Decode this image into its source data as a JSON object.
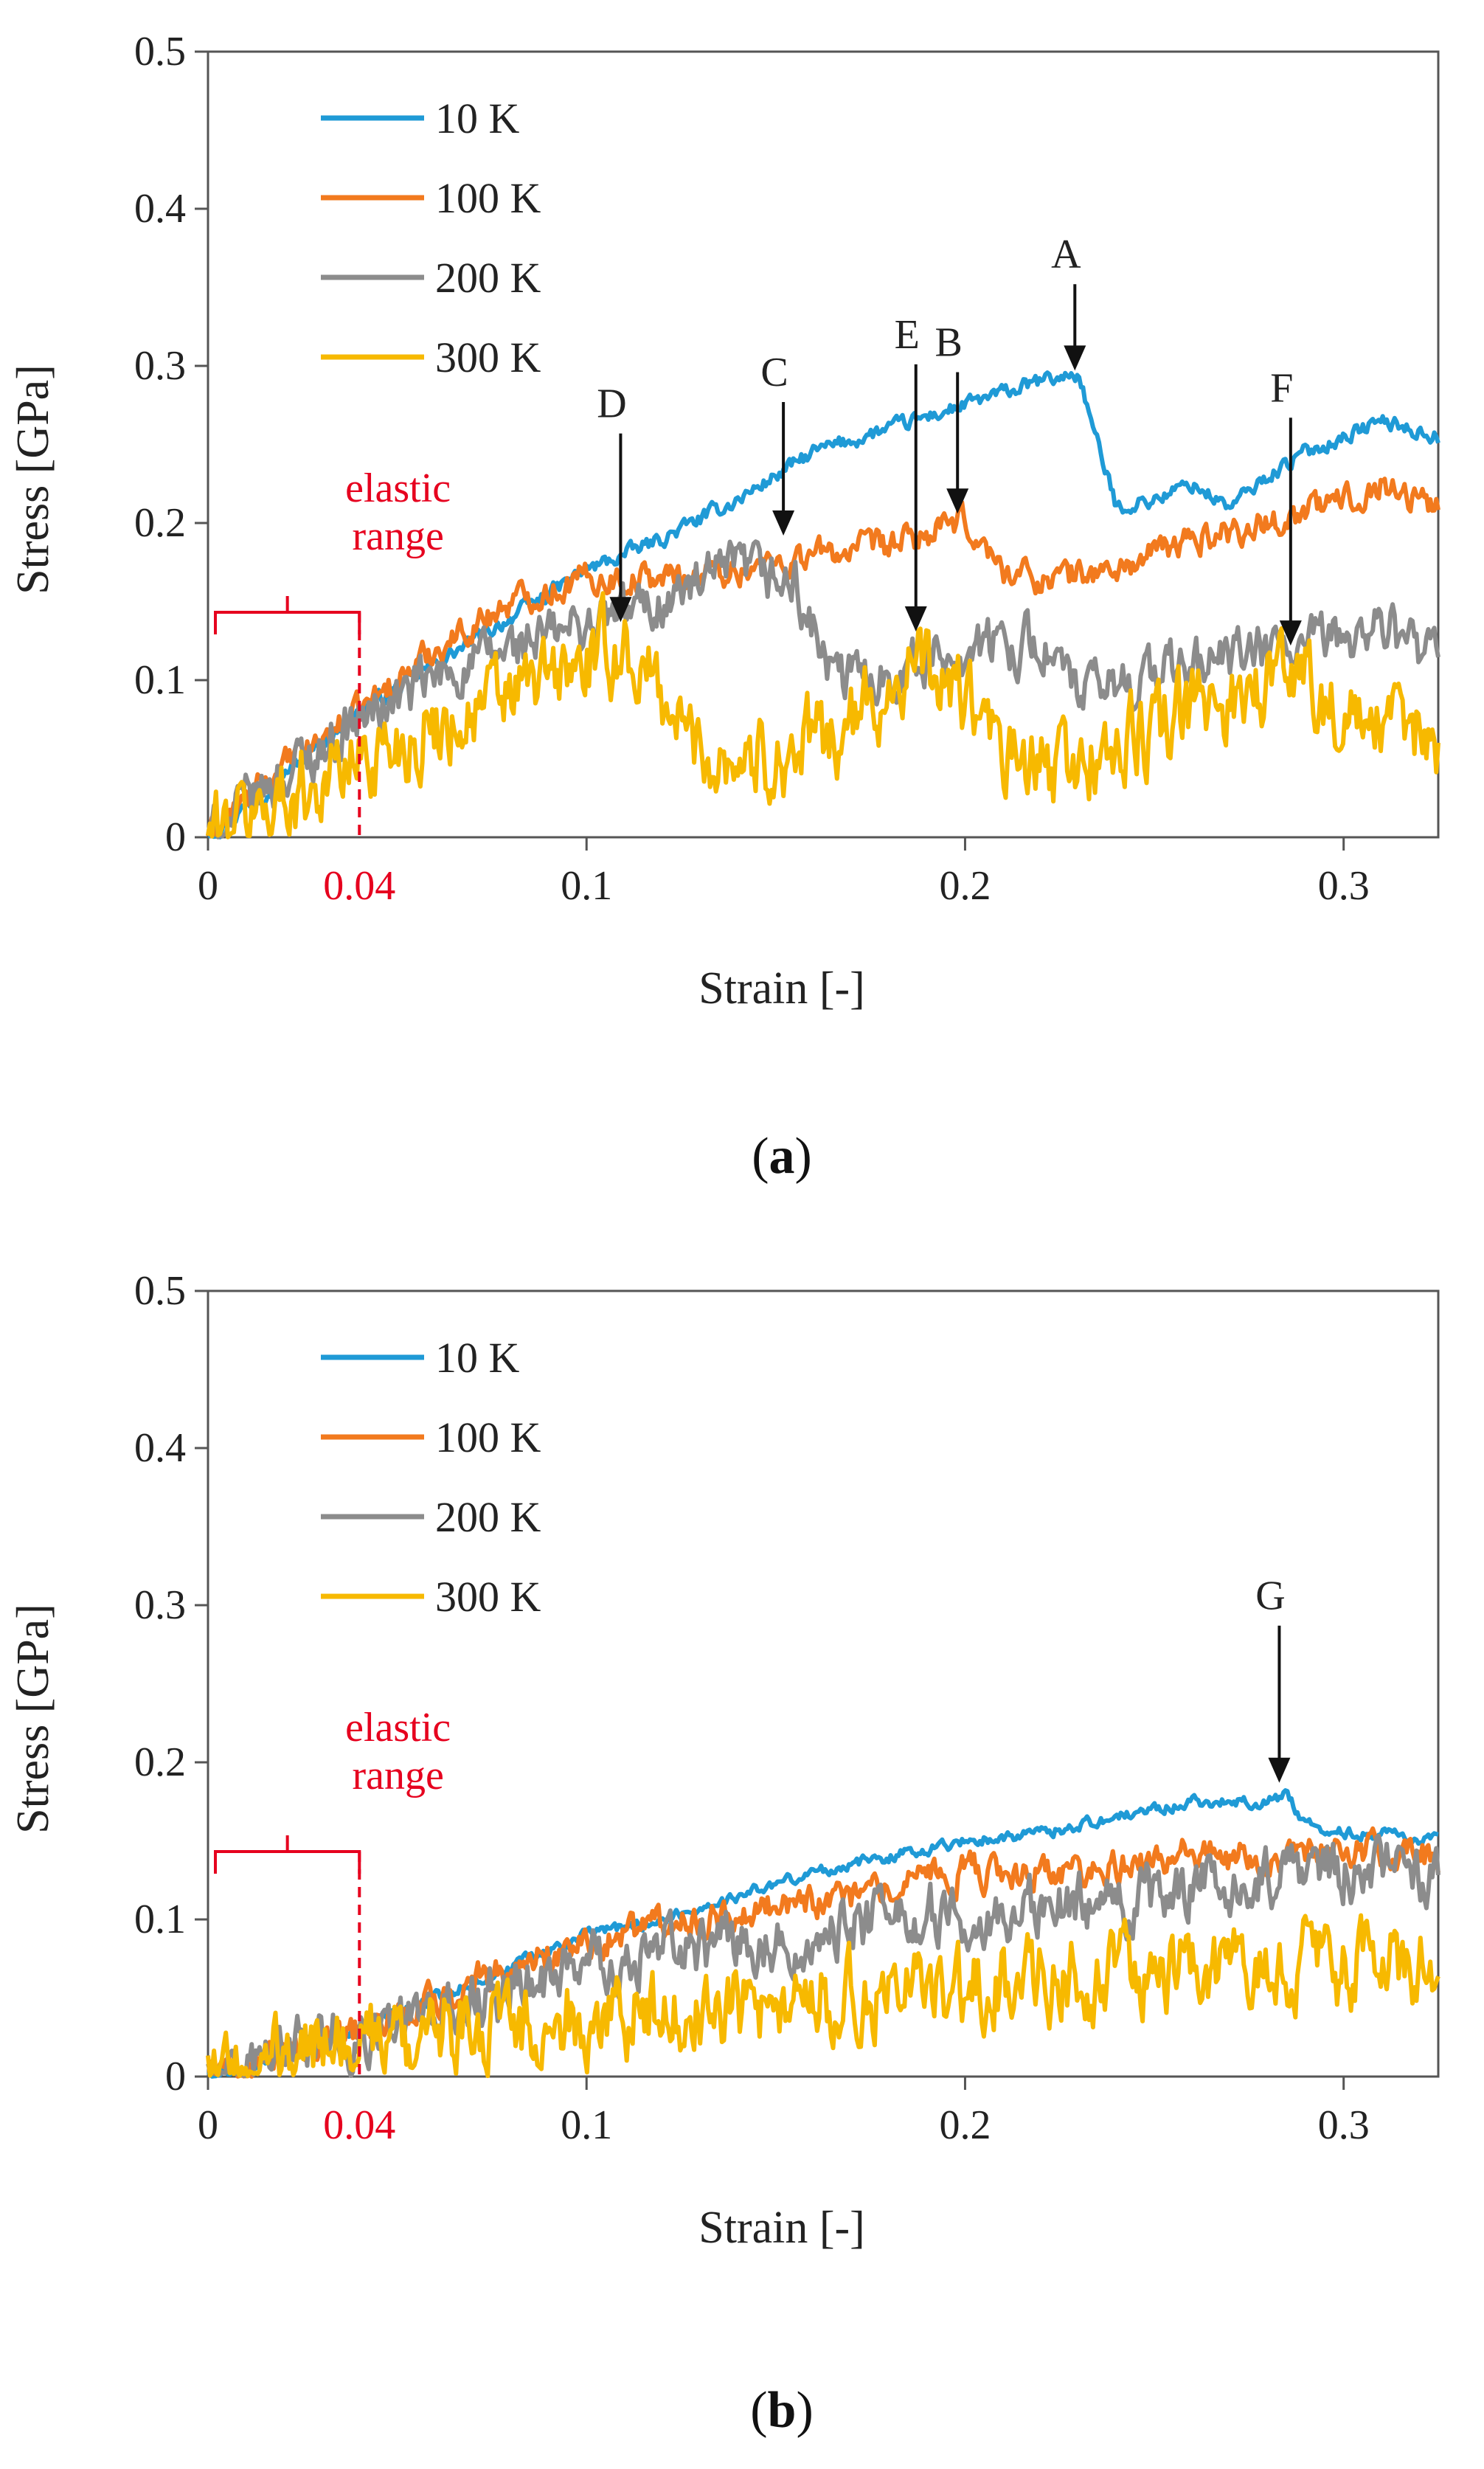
{
  "chart_data": [
    {
      "panel": "a",
      "type": "line",
      "caption_letter": "a",
      "xlabel": "Strain [-]",
      "ylabel": "Stress [GPa]",
      "xlim": [
        0,
        0.325
      ],
      "ylim": [
        0,
        0.5
      ],
      "xticks": [
        0,
        0.1,
        0.2,
        0.3
      ],
      "xtick_labels": [
        "0",
        "0.1",
        "0.2",
        "0.3"
      ],
      "yticks": [
        0,
        0.1,
        0.2,
        0.3,
        0.4,
        0.5
      ],
      "ytick_labels": [
        "0",
        "0.1",
        "0.2",
        "0.3",
        "0.4",
        "0.5"
      ],
      "legend_position": "top-left",
      "series": [
        {
          "name": "10 K",
          "color": "#1f9ad6",
          "noise": 0.004,
          "x": [
            0,
            0.02,
            0.04,
            0.06,
            0.08,
            0.1,
            0.12,
            0.14,
            0.16,
            0.18,
            0.2,
            0.22,
            0.23,
            0.235,
            0.24,
            0.25,
            0.26,
            0.27,
            0.28,
            0.29,
            0.3,
            0.31,
            0.325
          ],
          "y": [
            0,
            0.04,
            0.08,
            0.11,
            0.14,
            0.17,
            0.19,
            0.215,
            0.245,
            0.26,
            0.275,
            0.29,
            0.295,
            0.25,
            0.21,
            0.215,
            0.225,
            0.21,
            0.23,
            0.245,
            0.255,
            0.265,
            0.255
          ]
        },
        {
          "name": "100 K",
          "color": "#f27a1e",
          "noise": 0.008,
          "x": [
            0,
            0.02,
            0.04,
            0.06,
            0.08,
            0.1,
            0.12,
            0.14,
            0.16,
            0.18,
            0.2,
            0.21,
            0.22,
            0.24,
            0.26,
            0.28,
            0.3,
            0.31,
            0.325
          ],
          "y": [
            0,
            0.045,
            0.08,
            0.12,
            0.15,
            0.165,
            0.165,
            0.17,
            0.18,
            0.185,
            0.2,
            0.17,
            0.165,
            0.17,
            0.19,
            0.2,
            0.215,
            0.225,
            0.21
          ]
        },
        {
          "name": "200 K",
          "color": "#8c8c8c",
          "noise": 0.014,
          "x": [
            0,
            0.02,
            0.04,
            0.06,
            0.08,
            0.1,
            0.12,
            0.14,
            0.155,
            0.165,
            0.18,
            0.2,
            0.22,
            0.23,
            0.25,
            0.27,
            0.29,
            0.31,
            0.325
          ],
          "y": [
            0,
            0.04,
            0.075,
            0.1,
            0.12,
            0.135,
            0.15,
            0.17,
            0.16,
            0.1,
            0.105,
            0.12,
            0.125,
            0.09,
            0.105,
            0.115,
            0.12,
            0.135,
            0.11
          ]
        },
        {
          "name": "300 K",
          "color": "#f7b900",
          "noise": 0.022,
          "x": [
            0,
            0.02,
            0.04,
            0.06,
            0.08,
            0.1,
            0.11,
            0.12,
            0.13,
            0.15,
            0.17,
            0.185,
            0.2,
            0.21,
            0.22,
            0.24,
            0.26,
            0.28,
            0.29,
            0.3,
            0.325
          ],
          "y": [
            0,
            0.025,
            0.05,
            0.07,
            0.09,
            0.11,
            0.12,
            0.09,
            0.055,
            0.05,
            0.07,
            0.11,
            0.09,
            0.05,
            0.04,
            0.055,
            0.08,
            0.1,
            0.11,
            0.07,
            0.065
          ]
        }
      ],
      "elastic": {
        "label_line1": "elastic",
        "label_line2": "range",
        "strain": 0.04,
        "strain_label": "0.04"
      },
      "annotations": [
        {
          "label": "A",
          "x": 0.229,
          "y": 0.297,
          "length": 0.055
        },
        {
          "label": "B",
          "x": 0.198,
          "y": 0.206,
          "length": 0.09
        },
        {
          "label": "C",
          "x": 0.152,
          "y": 0.192,
          "length": 0.085
        },
        {
          "label": "D",
          "x": 0.109,
          "y": 0.137,
          "length": 0.12
        },
        {
          "label": "E",
          "x": 0.187,
          "y": 0.131,
          "length": 0.17
        },
        {
          "label": "F",
          "x": 0.286,
          "y": 0.122,
          "length": 0.145
        }
      ]
    },
    {
      "panel": "b",
      "type": "line",
      "caption_letter": "b",
      "xlabel": "Strain [-]",
      "ylabel": "Stress [GPa]",
      "xlim": [
        0,
        0.325
      ],
      "ylim": [
        0,
        0.5
      ],
      "xticks": [
        0,
        0.1,
        0.2,
        0.3
      ],
      "xtick_labels": [
        "0",
        "0.1",
        "0.2",
        "0.3"
      ],
      "yticks": [
        0,
        0.1,
        0.2,
        0.3,
        0.4,
        0.5
      ],
      "ytick_labels": [
        "0",
        "0.1",
        "0.2",
        "0.3",
        "0.4",
        "0.5"
      ],
      "legend_position": "top-left",
      "series": [
        {
          "name": "10 K",
          "color": "#1f9ad6",
          "noise": 0.003,
          "x": [
            0,
            0.02,
            0.04,
            0.06,
            0.08,
            0.1,
            0.12,
            0.14,
            0.16,
            0.18,
            0.2,
            0.22,
            0.24,
            0.26,
            0.27,
            0.28,
            0.285,
            0.29,
            0.3,
            0.31,
            0.325
          ],
          "y": [
            0,
            0.015,
            0.03,
            0.05,
            0.07,
            0.09,
            0.1,
            0.115,
            0.13,
            0.14,
            0.15,
            0.155,
            0.165,
            0.175,
            0.175,
            0.175,
            0.18,
            0.16,
            0.155,
            0.155,
            0.15
          ]
        },
        {
          "name": "100 K",
          "color": "#f27a1e",
          "noise": 0.009,
          "x": [
            0,
            0.02,
            0.04,
            0.06,
            0.08,
            0.1,
            0.12,
            0.14,
            0.16,
            0.18,
            0.2,
            0.22,
            0.24,
            0.26,
            0.28,
            0.3,
            0.325
          ],
          "y": [
            0,
            0.015,
            0.03,
            0.05,
            0.07,
            0.085,
            0.095,
            0.105,
            0.11,
            0.12,
            0.13,
            0.13,
            0.135,
            0.14,
            0.14,
            0.145,
            0.14
          ]
        },
        {
          "name": "200 K",
          "color": "#8c8c8c",
          "noise": 0.016,
          "x": [
            0,
            0.02,
            0.04,
            0.06,
            0.08,
            0.1,
            0.12,
            0.14,
            0.16,
            0.18,
            0.2,
            0.22,
            0.24,
            0.26,
            0.28,
            0.3,
            0.325
          ],
          "y": [
            0,
            0.015,
            0.03,
            0.04,
            0.055,
            0.07,
            0.08,
            0.085,
            0.09,
            0.1,
            0.105,
            0.11,
            0.11,
            0.12,
            0.125,
            0.13,
            0.125
          ]
        },
        {
          "name": "300 K",
          "color": "#f7b900",
          "noise": 0.022,
          "x": [
            0,
            0.02,
            0.04,
            0.06,
            0.08,
            0.1,
            0.12,
            0.14,
            0.16,
            0.18,
            0.2,
            0.22,
            0.24,
            0.26,
            0.28,
            0.3,
            0.325
          ],
          "y": [
            0,
            0.01,
            0.02,
            0.03,
            0.035,
            0.035,
            0.045,
            0.045,
            0.05,
            0.055,
            0.06,
            0.06,
            0.065,
            0.07,
            0.07,
            0.07,
            0.07
          ]
        }
      ],
      "elastic": {
        "label_line1": "elastic",
        "label_line2": "range",
        "strain": 0.04,
        "strain_label": "0.04"
      },
      "annotations": [
        {
          "label": "G",
          "x": 0.283,
          "y": 0.187,
          "length": 0.1
        }
      ]
    }
  ]
}
